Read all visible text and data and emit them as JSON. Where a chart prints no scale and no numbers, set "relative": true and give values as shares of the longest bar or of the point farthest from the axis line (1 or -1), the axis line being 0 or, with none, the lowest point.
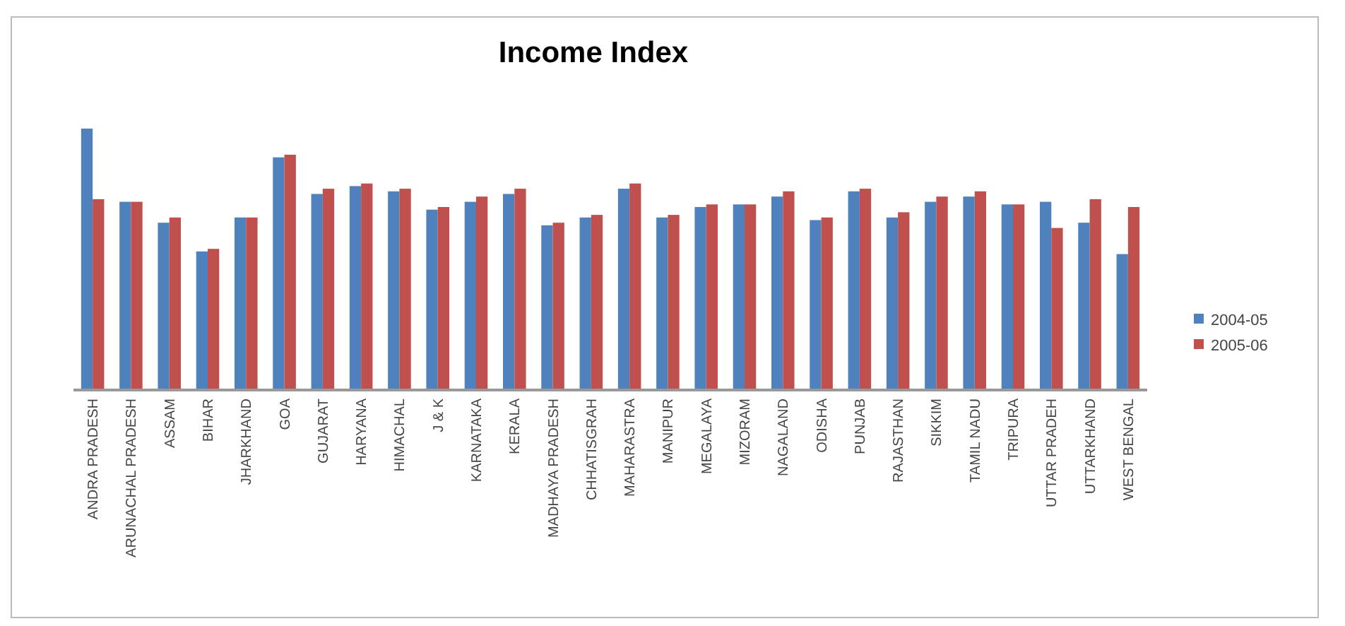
{
  "chart_data": {
    "type": "bar",
    "title": "Income Index",
    "relative": true,
    "legend": "right",
    "categories": [
      "ANDRA PRADESH",
      "ARUNACHAL PRADESH",
      "ASSAM",
      "BIHAR",
      "JHARKHAND",
      "GOA",
      "GUJARAT",
      "HARYANA",
      "HIMACHAL",
      "J & K",
      "KARNATAKA",
      "KERALA",
      "MADHAYA PRADESH",
      "CHHATISGRAH",
      "MAHARASTRA",
      "MANIPUR",
      "MEGALAYA",
      "MIZORAM",
      "NAGALAND",
      "ODISHA",
      "PUNJAB",
      "RAJASTHAN",
      "SIKKIM",
      "TAMIL NADU",
      "TRIPURA",
      "UTTAR PRADEH",
      "UTTARKHAND",
      "WEST BENGAL"
    ],
    "series": [
      {
        "name": "2004-05",
        "color": "#4f81bd",
        "values": [
          1,
          0.72,
          0.64,
          0.53,
          0.66,
          0.89,
          0.75,
          0.78,
          0.76,
          0.69,
          0.72,
          0.75,
          0.63,
          0.66,
          0.77,
          0.66,
          0.7,
          0.71,
          0.74,
          0.65,
          0.76,
          0.66,
          0.72,
          0.74,
          0.71,
          0.72,
          0.64,
          0.52
        ]
      },
      {
        "name": "2005-06",
        "color": "#c0504d",
        "values": [
          0.73,
          0.72,
          0.66,
          0.54,
          0.66,
          0.9,
          0.77,
          0.79,
          0.77,
          0.7,
          0.74,
          0.77,
          0.64,
          0.67,
          0.79,
          0.67,
          0.71,
          0.71,
          0.76,
          0.66,
          0.77,
          0.68,
          0.74,
          0.76,
          0.71,
          0.62,
          0.73,
          0.7
        ]
      }
    ]
  }
}
